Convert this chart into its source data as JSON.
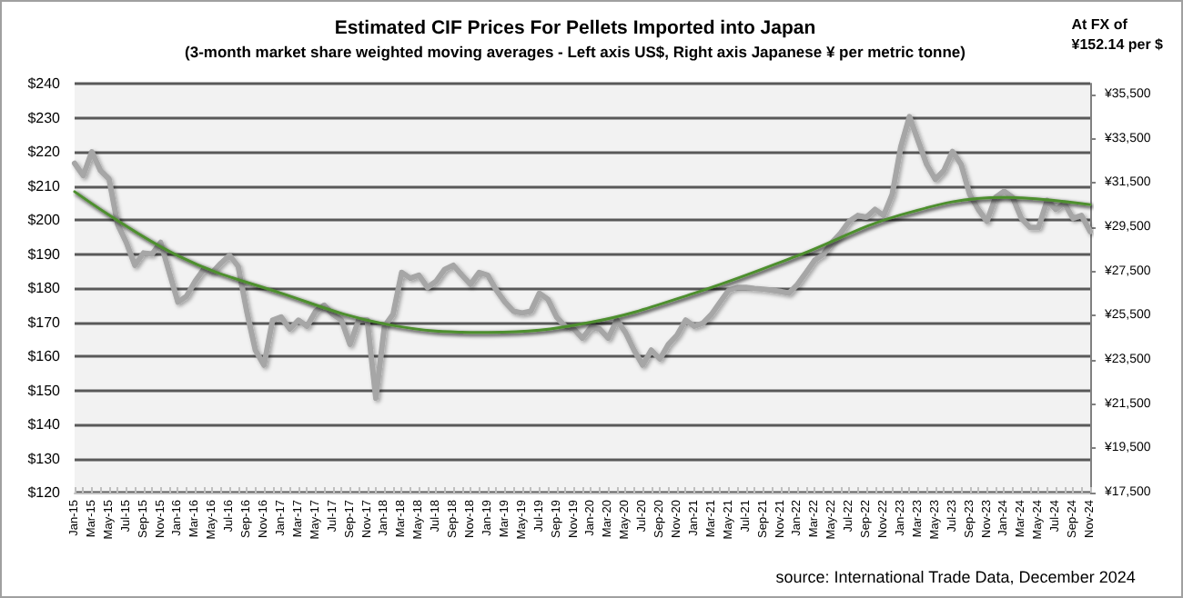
{
  "chart_data": {
    "type": "line",
    "title": "Estimated CIF Prices For Pellets Imported into Japan",
    "subtitle": "(3-month market share weighted moving averages - Left axis US$, Right axis Japanese ¥ per metric tonne)",
    "annotations": [
      "At FX of ¥152.14 per $",
      "source: International Trade Data, December 2024"
    ],
    "categories": [
      "Jan-15",
      null,
      "Mar-15",
      null,
      "May-15",
      null,
      "Jul-15",
      null,
      "Sep-15",
      null,
      "Nov-15",
      null,
      "Jan-16",
      null,
      "Mar-16",
      null,
      "May-16",
      null,
      "Jul-16",
      null,
      "Sep-16",
      null,
      "Nov-16",
      null,
      "Jan-17",
      null,
      "Mar-17",
      null,
      "May-17",
      null,
      "Jul-17",
      null,
      "Sep-17",
      null,
      "Nov-17",
      null,
      "Jan-18",
      null,
      "Mar-18",
      null,
      "May-18",
      null,
      "Jul-18",
      null,
      "Sep-18",
      null,
      "Nov-18",
      null,
      "Jan-19",
      null,
      "Mar-19",
      null,
      "May-19",
      null,
      "Jul-19",
      null,
      "Sep-19",
      null,
      "Nov-19",
      null,
      "Jan-20",
      null,
      "Mar-20",
      null,
      "May-20",
      null,
      "Jul-20",
      null,
      "Sep-20",
      null,
      "Nov-20",
      null,
      "Jan-21",
      null,
      "Mar-21",
      null,
      "May-21",
      null,
      "Jul-21",
      null,
      "Sep-21",
      null,
      "Nov-21",
      null,
      "Jan-22",
      null,
      "Mar-22",
      null,
      "May-22",
      null,
      "Jul-22",
      null,
      "Sep-22",
      null,
      "Nov-22",
      null,
      "Jan-23",
      null,
      "Mar-23",
      null,
      "May-23",
      null,
      "Jul-23",
      null,
      "Sep-23",
      null,
      "Nov-23",
      null,
      "Jan-24",
      null,
      "Mar-24",
      null,
      "May-24",
      null,
      "Jul-24",
      null,
      "Sep-24",
      null,
      "Nov-24"
    ],
    "series": [
      {
        "color": "#a6a6a6",
        "values": [
          216.6,
          213,
          220,
          214.5,
          212,
          198.7,
          193.4,
          186.7,
          190.3,
          190,
          193.4,
          184.6,
          175.9,
          177.6,
          182,
          185.5,
          184.6,
          187.3,
          189.6,
          186.4,
          173.2,
          161.8,
          157.4,
          170.6,
          171.5,
          168,
          170.6,
          168.8,
          173.2,
          175,
          172.3,
          170.6,
          163.5,
          170.6,
          170.6,
          147.7,
          168.8,
          172.3,
          184.6,
          182.9,
          183.8,
          180.2,
          182,
          185.5,
          186.7,
          183.8,
          181.1,
          184.6,
          183.8,
          179.4,
          175.9,
          173.2,
          172.7,
          173.2,
          178.5,
          176.7,
          171.5,
          168.8,
          168,
          165.3,
          168.5,
          168,
          165.3,
          170.6,
          167,
          161.8,
          157.4,
          161.8,
          159.2,
          163.5,
          166.2,
          170.6,
          168.8,
          169.7,
          172.3,
          175.9,
          179.4,
          180.2,
          180.2,
          179.9,
          179.7,
          179.4,
          179,
          178.5,
          181.1,
          184.6,
          188.2,
          189.9,
          193.4,
          196.1,
          199.6,
          201.3,
          200.8,
          203.1,
          201.3,
          207.5,
          221.5,
          230.3,
          223.3,
          216.3,
          211.9,
          214.5,
          220.1,
          216.3,
          207.5,
          203.1,
          199.6,
          206.6,
          208.4,
          206.6,
          200.5,
          197.8,
          197.8,
          205.7,
          203.1,
          204.9,
          200.5,
          201.3,
          196.6
        ]
      },
      {
        "color": "#4e8f2e",
        "x": [
          "Jan-15",
          "Jan-16",
          "Jan-17",
          "Jan-18",
          "Jan-19",
          "Jan-20",
          "Jan-21",
          "Jan-22",
          "Jan-23",
          "Jan-24",
          "Nov-24"
        ],
        "values": [
          208.3,
          189.5,
          178.5,
          169.5,
          167,
          170,
          178.5,
          189.5,
          201.5,
          206.6,
          204.5
        ]
      }
    ],
    "ylim": [
      120,
      240
    ],
    "yticks": [
      {
        "value": 120,
        "label": "$120"
      },
      {
        "value": 130,
        "label": "$130"
      },
      {
        "value": 140,
        "label": "$140"
      },
      {
        "value": 150,
        "label": "$150"
      },
      {
        "value": 160,
        "label": "$160"
      },
      {
        "value": 170,
        "label": "$170"
      },
      {
        "value": 180,
        "label": "$180"
      },
      {
        "value": 190,
        "label": "$190"
      },
      {
        "value": 200,
        "label": "$200"
      },
      {
        "value": 210,
        "label": "$210"
      },
      {
        "value": 220,
        "label": "$220"
      },
      {
        "value": 230,
        "label": "$230"
      },
      {
        "value": 240,
        "label": "$240"
      }
    ],
    "y2lim": [
      17500,
      36000
    ],
    "y2ticks": [
      {
        "value": 17500,
        "label": "¥17,500"
      },
      {
        "value": 19500,
        "label": "¥19,500"
      },
      {
        "value": 21500,
        "label": "¥21,500"
      },
      {
        "value": 23500,
        "label": "¥23,500"
      },
      {
        "value": 25500,
        "label": "¥25,500"
      },
      {
        "value": 27500,
        "label": "¥27,500"
      },
      {
        "value": 29500,
        "label": "¥29,500"
      },
      {
        "value": 31500,
        "label": "¥31,500"
      },
      {
        "value": 33500,
        "label": "¥33,500"
      },
      {
        "value": 35500,
        "label": "¥35,500"
      }
    ],
    "grid": "y",
    "marker": "none",
    "line_style": "solid"
  }
}
